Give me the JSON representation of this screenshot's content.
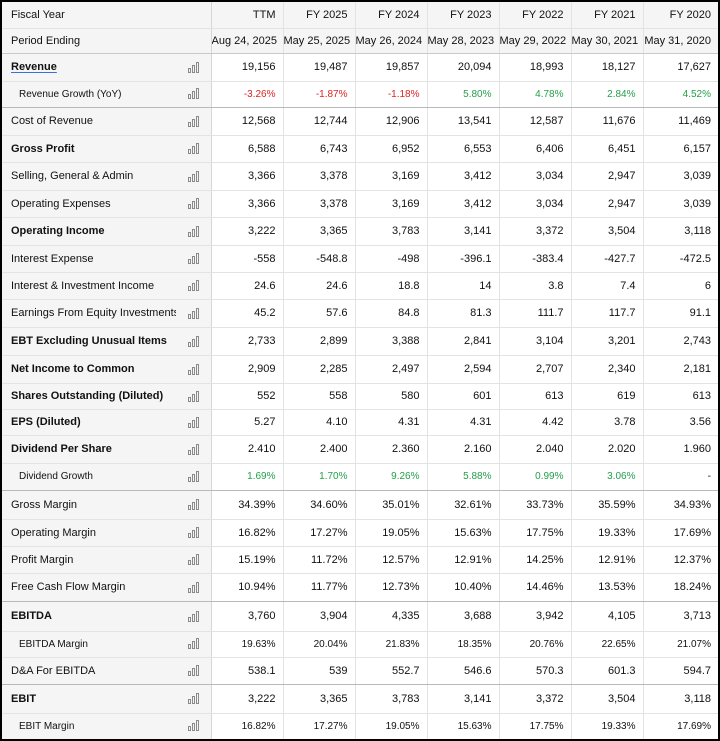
{
  "header": {
    "fiscal_year_label": "Fiscal Year",
    "period_ending_label": "Period Ending",
    "columns": [
      {
        "year": "TTM",
        "period": "Aug 24, 2025"
      },
      {
        "year": "FY 2025",
        "period": "May 25, 2025"
      },
      {
        "year": "FY 2024",
        "period": "May 26, 2024"
      },
      {
        "year": "FY 2023",
        "period": "May 28, 2023"
      },
      {
        "year": "FY 2022",
        "period": "May 29, 2022"
      },
      {
        "year": "FY 2021",
        "period": "May 30, 2021"
      },
      {
        "year": "FY 2020",
        "period": "May 31, 2020"
      }
    ]
  },
  "rows": [
    {
      "label": "Revenue",
      "style": "bold link",
      "h": 28,
      "values": [
        "19,156",
        "19,487",
        "19,857",
        "20,094",
        "18,993",
        "18,127",
        "17,627"
      ]
    },
    {
      "label": "Revenue Growth (YoY)",
      "style": "sub sep",
      "h": 26,
      "values": [
        "-3.26%",
        "-1.87%",
        "-1.18%",
        "5.80%",
        "4.78%",
        "2.84%",
        "4.52%"
      ],
      "colors": [
        "neg",
        "neg",
        "neg",
        "pos",
        "pos",
        "pos",
        "pos"
      ]
    },
    {
      "label": "Cost of Revenue",
      "style": "",
      "h": 28,
      "values": [
        "12,568",
        "12,744",
        "12,906",
        "13,541",
        "12,587",
        "11,676",
        "11,469"
      ]
    },
    {
      "label": "Gross Profit",
      "style": "bold",
      "h": 27,
      "values": [
        "6,588",
        "6,743",
        "6,952",
        "6,553",
        "6,406",
        "6,451",
        "6,157"
      ]
    },
    {
      "label": "Selling, General & Admin",
      "style": "",
      "h": 28,
      "values": [
        "3,366",
        "3,378",
        "3,169",
        "3,412",
        "3,034",
        "2,947",
        "3,039"
      ]
    },
    {
      "label": "Operating Expenses",
      "style": "",
      "h": 27,
      "values": [
        "3,366",
        "3,378",
        "3,169",
        "3,412",
        "3,034",
        "2,947",
        "3,039"
      ]
    },
    {
      "label": "Operating Income",
      "style": "bold",
      "h": 28,
      "values": [
        "3,222",
        "3,365",
        "3,783",
        "3,141",
        "3,372",
        "3,504",
        "3,118"
      ]
    },
    {
      "label": "Interest Expense",
      "style": "",
      "h": 27,
      "values": [
        "-558",
        "-548.8",
        "-498",
        "-396.1",
        "-383.4",
        "-427.7",
        "-472.5"
      ]
    },
    {
      "label": "Interest & Investment Income",
      "style": "",
      "h": 27,
      "values": [
        "24.6",
        "24.6",
        "18.8",
        "14",
        "3.8",
        "7.4",
        "6"
      ]
    },
    {
      "label": "Earnings From Equity Investments",
      "style": "",
      "h": 28,
      "values": [
        "45.2",
        "57.6",
        "84.8",
        "81.3",
        "111.7",
        "117.7",
        "91.1"
      ]
    },
    {
      "label": "EBT Excluding Unusual Items",
      "style": "bold",
      "h": 28,
      "values": [
        "2,733",
        "2,899",
        "3,388",
        "2,841",
        "3,104",
        "3,201",
        "2,743"
      ]
    },
    {
      "label": "Net Income to Common",
      "style": "bold",
      "h": 28,
      "values": [
        "2,909",
        "2,285",
        "2,497",
        "2,594",
        "2,707",
        "2,340",
        "2,181"
      ]
    },
    {
      "label": "Shares Outstanding (Diluted)",
      "style": "bold",
      "h": 26,
      "values": [
        "552",
        "558",
        "580",
        "601",
        "613",
        "619",
        "613"
      ]
    },
    {
      "label": "EPS (Diluted)",
      "style": "bold",
      "h": 26,
      "values": [
        "5.27",
        "4.10",
        "4.31",
        "4.31",
        "4.42",
        "3.78",
        "3.56"
      ]
    },
    {
      "label": "Dividend Per Share",
      "style": "bold",
      "h": 28,
      "values": [
        "2.410",
        "2.400",
        "2.360",
        "2.160",
        "2.040",
        "2.020",
        "1.960"
      ]
    },
    {
      "label": "Dividend Growth",
      "style": "sub sep",
      "h": 27,
      "values": [
        "1.69%",
        "1.70%",
        "9.26%",
        "5.88%",
        "0.99%",
        "3.06%",
        "-"
      ],
      "colors": [
        "pos",
        "pos",
        "pos",
        "pos",
        "pos",
        "pos",
        ""
      ]
    },
    {
      "label": "Gross Margin",
      "style": "",
      "h": 29,
      "values": [
        "34.39%",
        "34.60%",
        "35.01%",
        "32.61%",
        "33.73%",
        "35.59%",
        "34.93%"
      ]
    },
    {
      "label": "Operating Margin",
      "style": "",
      "h": 27,
      "values": [
        "16.82%",
        "17.27%",
        "19.05%",
        "15.63%",
        "17.75%",
        "19.33%",
        "17.69%"
      ]
    },
    {
      "label": "Profit Margin",
      "style": "",
      "h": 27,
      "values": [
        "15.19%",
        "11.72%",
        "12.57%",
        "12.91%",
        "14.25%",
        "12.91%",
        "12.37%"
      ]
    },
    {
      "label": "Free Cash Flow Margin",
      "style": "sep",
      "h": 28,
      "values": [
        "10.94%",
        "11.77%",
        "12.73%",
        "10.40%",
        "14.46%",
        "13.53%",
        "18.24%"
      ]
    },
    {
      "label": "EBITDA",
      "style": "bold",
      "h": 30,
      "values": [
        "3,760",
        "3,904",
        "4,335",
        "3,688",
        "3,942",
        "4,105",
        "3,713"
      ]
    },
    {
      "label": "EBITDA Margin",
      "style": "sub",
      "h": 26,
      "values": [
        "19.63%",
        "20.04%",
        "21.83%",
        "18.35%",
        "20.76%",
        "22.65%",
        "21.07%"
      ]
    },
    {
      "label": "D&A For EBITDA",
      "style": "sep",
      "h": 27,
      "values": [
        "538.1",
        "539",
        "552.7",
        "546.6",
        "570.3",
        "601.3",
        "594.7"
      ]
    },
    {
      "label": "EBIT",
      "style": "bold",
      "h": 29,
      "values": [
        "3,222",
        "3,365",
        "3,783",
        "3,141",
        "3,372",
        "3,504",
        "3,118"
      ]
    },
    {
      "label": "EBIT Margin",
      "style": "sub",
      "h": 26,
      "values": [
        "16.82%",
        "17.27%",
        "19.05%",
        "15.63%",
        "17.75%",
        "19.33%",
        "17.69%"
      ]
    }
  ],
  "icons": {
    "row_chart": "bar-chart-icon"
  },
  "colors": {
    "negative": "#dd2222",
    "positive": "#23a04a",
    "link_underline": "#3a6fd8"
  }
}
